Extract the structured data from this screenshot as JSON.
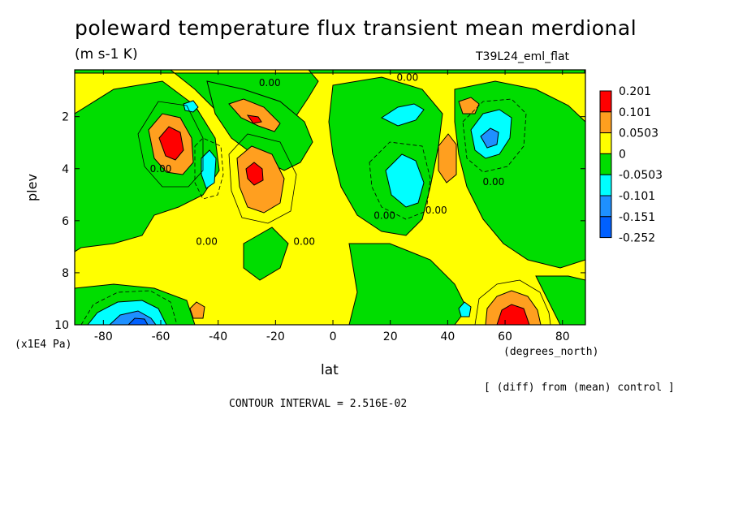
{
  "title": "poleward temperature flux transient mean merdional",
  "units": "(m s-1 K)",
  "run_label": "T39L24_eml_flat",
  "chart_data": {
    "type": "contour",
    "xlabel": "lat",
    "ylabel": "plev",
    "x_units": "(degrees_north)",
    "y_units": "(x1E4 Pa)",
    "xlim": [
      -90,
      88
    ],
    "ylim": [
      10,
      0.2
    ],
    "x_ticks": [
      -80,
      -60,
      -40,
      -20,
      0,
      20,
      40,
      60,
      80
    ],
    "x_tick_labels": [
      "-80",
      "-60",
      "-40",
      "-20",
      "0",
      "20",
      "40",
      "60",
      "80"
    ],
    "y_ticks": [
      2,
      4,
      6,
      8,
      10
    ],
    "y_tick_labels": [
      "2",
      "4",
      "6",
      "8",
      "10"
    ],
    "note": "[ (diff) from (mean) control ]",
    "contour_interval": "CONTOUR INTERVAL = 2.516E-02",
    "colorbar": {
      "labels": [
        "0.201",
        "0.101",
        "0.0503",
        "0",
        "-0.0503",
        "-0.101",
        "-0.151",
        "-0.252"
      ],
      "colors": [
        "#ff0000",
        "#ff9f1f",
        "#ffff00",
        "#00dd00",
        "#00ffff",
        "#1e90ff",
        "#0060ff"
      ]
    },
    "contour_labels": [
      {
        "text": "0.00",
        "lat": -22,
        "plev": 0.7
      },
      {
        "text": "0.00",
        "lat": 26,
        "plev": 0.5
      },
      {
        "text": "0.00",
        "lat": -60,
        "plev": 4
      },
      {
        "text": "0.00",
        "lat": -44,
        "plev": 6.8
      },
      {
        "text": "0.00",
        "lat": -10,
        "plev": 6.8
      },
      {
        "text": "0.00",
        "lat": 18,
        "plev": 5.8
      },
      {
        "text": "0.00",
        "lat": 36,
        "plev": 5.6
      },
      {
        "text": "0.00",
        "lat": 56,
        "plev": 4.5
      }
    ],
    "features": [
      {
        "name": "max south",
        "lat": -56,
        "plev": 2.9,
        "value": 0.201
      },
      {
        "name": "max south mid",
        "lat": -26,
        "plev": 4.1,
        "value": 0.201
      },
      {
        "name": "max upper",
        "lat": -27,
        "plev": 1.9,
        "value": 0.101
      },
      {
        "name": "max north surface",
        "lat": 62,
        "plev": 9.8,
        "value": 0.201
      },
      {
        "name": "max north upper",
        "lat": 48,
        "plev": 1.5,
        "value": 0.101
      },
      {
        "name": "max north mid",
        "lat": 42,
        "plev": 3.6,
        "value": 0.0503
      },
      {
        "name": "min south surface",
        "lat": -64,
        "plev": 9.7,
        "value": -0.151
      },
      {
        "name": "min north upper",
        "lat": 54,
        "plev": 2.8,
        "value": -0.101
      },
      {
        "name": "min mid",
        "lat": 30,
        "plev": 4.1,
        "value": -0.101
      },
      {
        "name": "min upper",
        "lat": 25,
        "plev": 1.7,
        "value": -0.0503
      },
      {
        "name": "min south upper",
        "lat": -48,
        "plev": 4.0,
        "value": -0.101
      },
      {
        "name": "min surface 45N",
        "lat": 46,
        "plev": 9.6,
        "value": -0.0503
      }
    ]
  }
}
